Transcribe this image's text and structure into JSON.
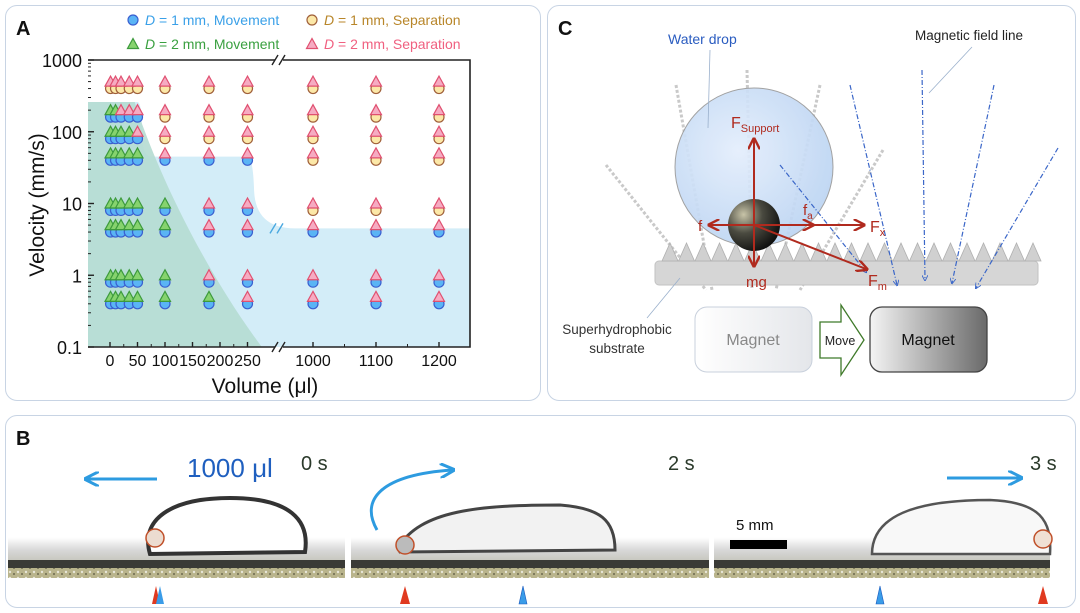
{
  "panels": {
    "a": "A",
    "b": "B",
    "c": "C"
  },
  "colors": {
    "d1_movement_fill": "#5ab4f5",
    "d1_movement_stroke": "#3a5fd0",
    "d1_separation_fill": "#fce8a8",
    "d1_separation_stroke": "#a0603a",
    "d2_movement_fill": "#86d36e",
    "d2_movement_stroke": "#3c9a3c",
    "d2_separation_fill": "#f6abc2",
    "d2_separation_stroke": "#e05070",
    "region_movement": "#d3edf8",
    "region_d2_movement": "#b5dcd2",
    "force_arrow": "#b02a1e",
    "motion_arrow": "#2d9be0"
  },
  "chart_data": {
    "type": "scatter",
    "xlabel": "Volume (μl)",
    "ylabel": "Velocity (mm/s)",
    "y_scale": "log",
    "ylim": [
      0.1,
      1000
    ],
    "y_ticks": [
      "1000",
      "100",
      "10",
      "1",
      "0.1"
    ],
    "x_axis_broken": true,
    "x_ticks": [
      "0",
      "50",
      "100",
      "150",
      "200",
      "250",
      "1000",
      "1100",
      "1200"
    ],
    "legend_placement": "top",
    "legend": [
      {
        "prefix": "D",
        "text": " = 1 mm, Movement",
        "marker": "circle",
        "color": "#3aa0e8"
      },
      {
        "prefix": "D",
        "text": " = 1 mm, Separation",
        "marker": "circle",
        "color": "#b8862a"
      },
      {
        "prefix": "D",
        "text": " = 2 mm, Movement",
        "marker": "triangle",
        "color": "#3aa040"
      },
      {
        "prefix": "D",
        "text": " = 2 mm, Separation",
        "marker": "triangle",
        "color": "#f06080"
      }
    ],
    "regions": [
      {
        "label": "movement region",
        "boundary_volume_velocity": [
          [
            0,
            260
          ],
          [
            55,
            260
          ],
          [
            60,
            45
          ],
          [
            255,
            45
          ],
          [
            270,
            4.5
          ],
          [
            1250,
            4.5
          ]
        ]
      },
      {
        "label": "D = 2 mm movement region",
        "boundary_volume_velocity": [
          [
            0,
            260
          ],
          [
            50,
            260
          ],
          [
            75,
            100
          ],
          [
            100,
            12
          ],
          [
            150,
            1
          ],
          [
            200,
            0.3
          ],
          [
            276,
            0.1
          ]
        ]
      }
    ],
    "series": [
      {
        "name": "D = 1 mm, Movement",
        "marker": "circle",
        "style": "d1_movement",
        "points": [
          {
            "velocity": 160,
            "volumes": [
              1,
              10,
              20,
              35,
              50
            ]
          },
          {
            "velocity": 80,
            "volumes": [
              1,
              10,
              20,
              35,
              50
            ]
          },
          {
            "velocity": 40,
            "volumes": [
              1,
              10,
              20,
              35,
              50,
              100,
              180,
              250
            ]
          },
          {
            "velocity": 8,
            "volumes": [
              1,
              10,
              20,
              35,
              50,
              100,
              180,
              250
            ]
          },
          {
            "velocity": 4,
            "volumes": [
              1,
              10,
              20,
              35,
              50,
              100,
              180,
              250,
              1000,
              1100,
              1200
            ]
          },
          {
            "velocity": 0.8,
            "volumes": [
              1,
              10,
              20,
              35,
              50,
              100,
              180,
              250,
              1000,
              1100,
              1200
            ]
          },
          {
            "velocity": 0.4,
            "volumes": [
              1,
              10,
              20,
              35,
              50,
              100,
              180,
              250,
              1000,
              1100,
              1200
            ]
          }
        ]
      },
      {
        "name": "D = 1 mm, Separation",
        "marker": "circle",
        "style": "d1_separation",
        "points": [
          {
            "velocity": 400,
            "volumes": [
              1,
              10,
              20,
              35,
              50,
              100,
              180,
              250,
              1000,
              1100,
              1200
            ]
          },
          {
            "velocity": 160,
            "volumes": [
              100,
              180,
              250,
              1000,
              1100,
              1200
            ]
          },
          {
            "velocity": 80,
            "volumes": [
              100,
              180,
              250,
              1000,
              1100,
              1200
            ]
          },
          {
            "velocity": 40,
            "volumes": [
              1000,
              1100,
              1200
            ]
          },
          {
            "velocity": 8,
            "volumes": [
              1000,
              1100,
              1200
            ]
          }
        ]
      },
      {
        "name": "D = 2 mm, Movement",
        "marker": "triangle",
        "style": "d2_movement",
        "points": [
          {
            "velocity": 200,
            "volumes": [
              1,
              10
            ]
          },
          {
            "velocity": 100,
            "volumes": [
              1,
              10,
              20,
              35
            ]
          },
          {
            "velocity": 50,
            "volumes": [
              1,
              10,
              20,
              35,
              50
            ]
          },
          {
            "velocity": 10,
            "volumes": [
              1,
              10,
              20,
              35,
              50,
              100
            ]
          },
          {
            "velocity": 5,
            "volumes": [
              1,
              10,
              20,
              35,
              50,
              100
            ]
          },
          {
            "velocity": 1,
            "volumes": [
              1,
              10,
              20,
              35,
              50,
              100
            ]
          },
          {
            "velocity": 0.5,
            "volumes": [
              1,
              10,
              20,
              35,
              50,
              100,
              180
            ]
          }
        ]
      },
      {
        "name": "D = 2 mm, Separation",
        "marker": "triangle",
        "style": "d2_separation",
        "points": [
          {
            "velocity": 500,
            "volumes": [
              1,
              10,
              20,
              35,
              50,
              100,
              180,
              250,
              1000,
              1100,
              1200
            ]
          },
          {
            "velocity": 200,
            "volumes": [
              20,
              35,
              50,
              100,
              180,
              250,
              1000,
              1100,
              1200
            ]
          },
          {
            "velocity": 100,
            "volumes": [
              50,
              100,
              180,
              250,
              1000,
              1100,
              1200
            ]
          },
          {
            "velocity": 50,
            "volumes": [
              100,
              180,
              250,
              1000,
              1100,
              1200
            ]
          },
          {
            "velocity": 10,
            "volumes": [
              180,
              250,
              1000,
              1100,
              1200
            ]
          },
          {
            "velocity": 5,
            "volumes": [
              180,
              250,
              1000,
              1100,
              1200
            ]
          },
          {
            "velocity": 1,
            "volumes": [
              180,
              250,
              1000,
              1100,
              1200
            ]
          },
          {
            "velocity": 0.5,
            "volumes": [
              250,
              1000,
              1100,
              1200
            ]
          }
        ]
      }
    ]
  },
  "panel_b": {
    "volume_label": "1000 μl",
    "times": [
      "0 s",
      "2 s",
      "3 s"
    ],
    "scale_bar": "5 mm"
  },
  "panel_c": {
    "water_drop": "Water drop",
    "field_line": "Magnetic field line",
    "f_support": "F",
    "f_support_sub": "Support",
    "f": "f",
    "f_a": "f",
    "f_a_sub": "a",
    "f_x": "F",
    "f_x_sub": "x",
    "mg": "mg",
    "f_m": "F",
    "f_m_sub": "m",
    "substrate_line1": "Superhydrophobic",
    "substrate_line2": "substrate",
    "magnet_before": "Magnet",
    "move": "Move",
    "magnet_after": "Magnet"
  }
}
